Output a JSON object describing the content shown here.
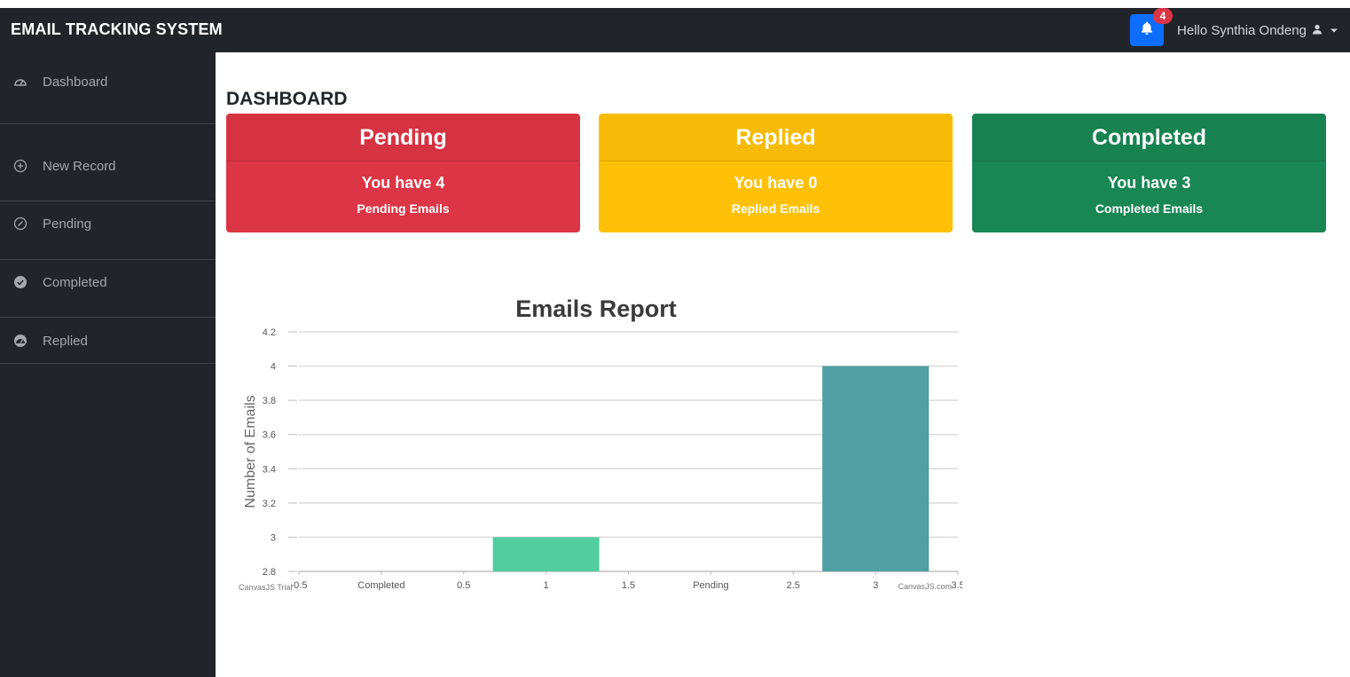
{
  "navbar": {
    "brand": "EMAIL TRACKING SYSTEM",
    "notification_count": "4",
    "user_greeting": "Hello Synthia Ondeng",
    "accent": "#0d6efd"
  },
  "sidebar": {
    "items": [
      {
        "label": "Dashboard",
        "icon": "gauge-icon"
      },
      {
        "label": "New Record",
        "icon": "plus-circle-icon"
      },
      {
        "label": "Pending",
        "icon": "ban-circle-icon"
      },
      {
        "label": "Completed",
        "icon": "check-circle-icon"
      },
      {
        "label": "Replied",
        "icon": "gauge-filled-icon"
      }
    ]
  },
  "main": {
    "title": "DASHBOARD",
    "cards": [
      {
        "title": "Pending",
        "count_text": "You have 4",
        "sub_text": "Pending Emails",
        "color": "#dc3545"
      },
      {
        "title": "Replied",
        "count_text": "You have 0",
        "sub_text": "Replied Emails",
        "color": "#ffc107"
      },
      {
        "title": "Completed",
        "count_text": "You have 3",
        "sub_text": "Completed Emails",
        "color": "#198754"
      }
    ]
  },
  "chart_data": {
    "type": "bar",
    "title": "Emails Report",
    "ylabel": "Number of Emails",
    "xlabel": "",
    "ylim": [
      2.8,
      4.2
    ],
    "yticks": [
      "2.8",
      "3",
      "3.2",
      "3.4",
      "3.6",
      "3.8",
      "4",
      "4.2"
    ],
    "xlim": [
      -0.5,
      3.5
    ],
    "xticks": [
      {
        "x": -0.5,
        "label": "-0.5"
      },
      {
        "x": 0,
        "label": "Completed"
      },
      {
        "x": 0.5,
        "label": "0.5"
      },
      {
        "x": 1,
        "label": "1"
      },
      {
        "x": 1.5,
        "label": "1.5"
      },
      {
        "x": 2,
        "label": "Pending"
      },
      {
        "x": 2.5,
        "label": "2.5"
      },
      {
        "x": 3,
        "label": "3"
      },
      {
        "x": 3.5,
        "label": "3.5"
      }
    ],
    "bars": [
      {
        "x": 1,
        "value": 3,
        "color": "#51cda0"
      },
      {
        "x": 3,
        "value": 4,
        "color": "#4f9fa3"
      }
    ],
    "watermark_left": "CanvasJS Trial",
    "watermark_right": "CanvasJS.com",
    "grid": true
  }
}
